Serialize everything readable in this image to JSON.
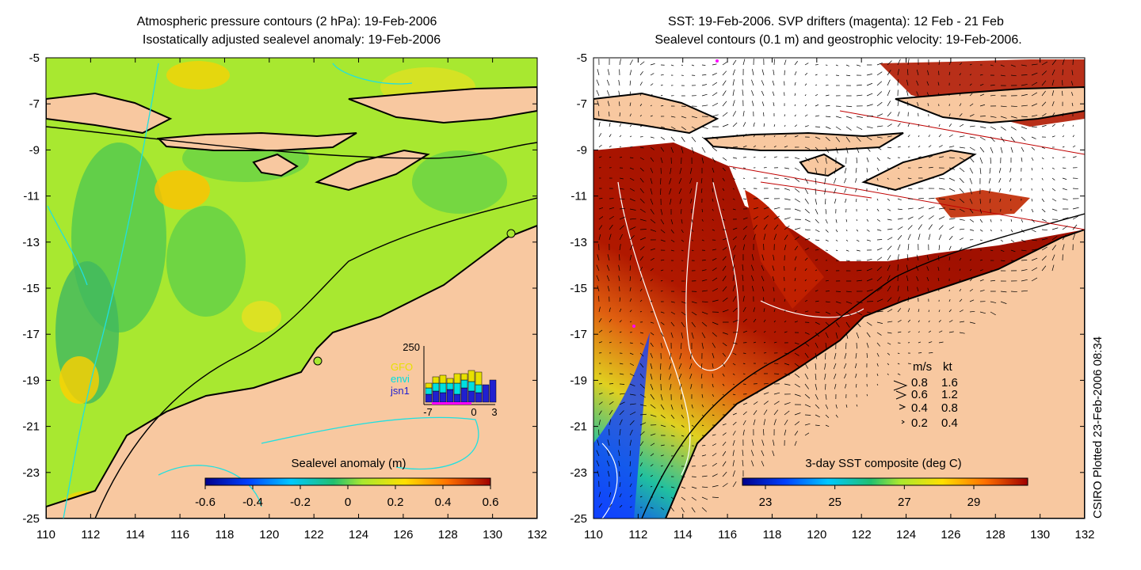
{
  "left_panel": {
    "title_line1": "Atmospheric pressure contours (2 hPa): 19-Feb-2006",
    "title_line2": "Isostatically adjusted sealevel anomaly: 19-Feb-2006",
    "colorbar_label": "Sealevel anomaly (m)",
    "colorbar_ticks": [
      "-0.6",
      "-0.4",
      "-0.2",
      "0",
      "0.2",
      "0.4",
      "0.6"
    ],
    "inset": {
      "ymax_label": "250",
      "x_ticks": [
        "-7",
        "0",
        "3"
      ],
      "legend": [
        {
          "label": "GFO",
          "color": "#e8e000"
        },
        {
          "label": "envi",
          "color": "#00e0e0"
        },
        {
          "label": "jsn1",
          "color": "#2020d0"
        }
      ]
    }
  },
  "right_panel": {
    "title_line1": "SST: 19-Feb-2006. SVP drifters (magenta): 12 Feb - 21 Feb",
    "title_line2": "Sealevel contours (0.1 m) and geostrophic velocity: 19-Feb-2006.",
    "colorbar_label": "3-day SST composite (deg C)",
    "colorbar_ticks": [
      "23",
      "25",
      "27",
      "29"
    ],
    "velocity_legend": {
      "header_ms": "m/s",
      "header_kt": "kt",
      "rows": [
        {
          "ms": "0.8",
          "kt": "1.6"
        },
        {
          "ms": "0.6",
          "kt": "1.2"
        },
        {
          "ms": "0.4",
          "kt": "0.8"
        },
        {
          "ms": "0.2",
          "kt": "0.4"
        }
      ]
    }
  },
  "axes": {
    "x_ticks": [
      "110",
      "112",
      "114",
      "116",
      "118",
      "120",
      "122",
      "124",
      "126",
      "128",
      "130",
      "132"
    ],
    "y_ticks": [
      "-5",
      "-7",
      "-9",
      "-11",
      "-13",
      "-15",
      "-17",
      "-19",
      "-21",
      "-23",
      "-25"
    ]
  },
  "credit": "CSIRO Plotted 23-Feb-2006 08:34",
  "colors": {
    "land": "#f8c8a0",
    "sla_background": "#a8e830",
    "sst_hot": "#b01800",
    "drifter": "#ff00ff"
  }
}
